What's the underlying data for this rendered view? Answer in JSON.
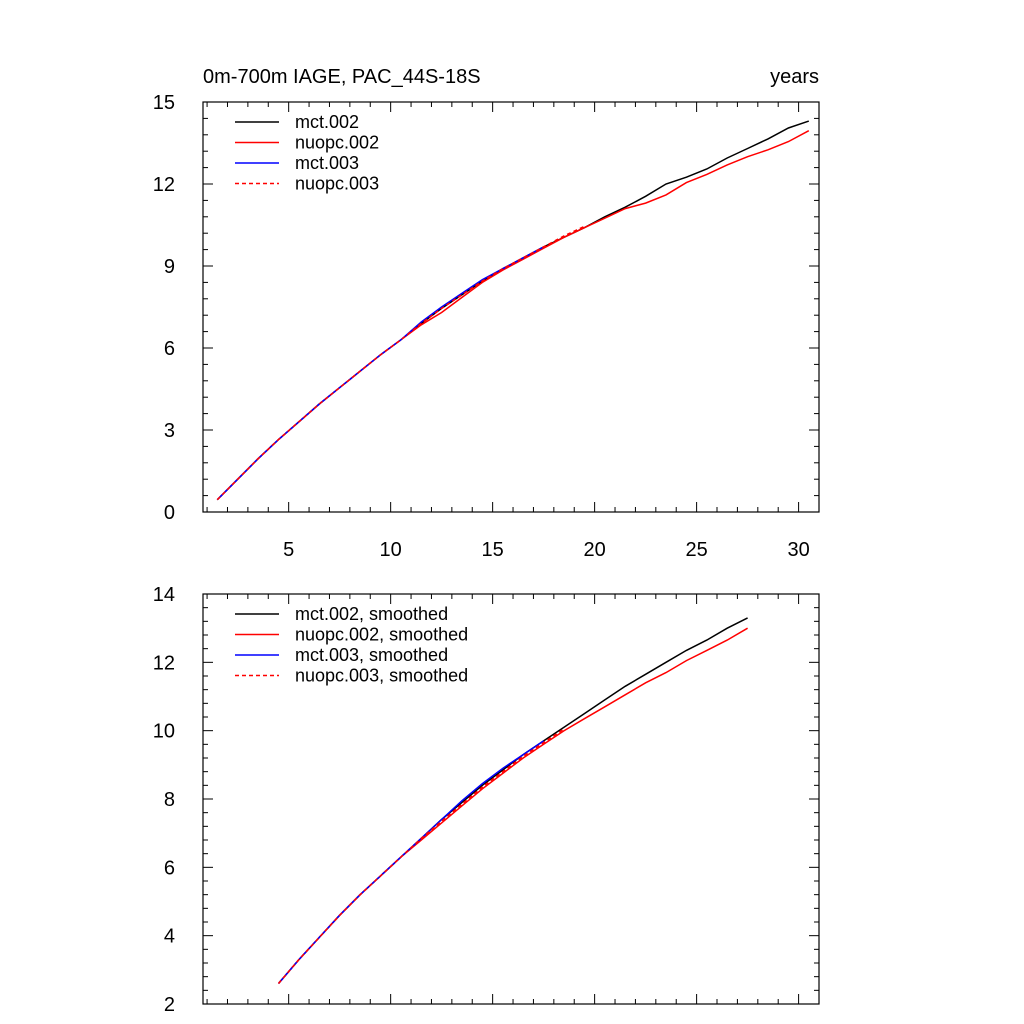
{
  "chart_data": [
    {
      "type": "line",
      "title": "0m-700m IAGE, PAC_44S-18S",
      "title_right": "years",
      "xlabel": "",
      "ylabel": "",
      "xlim": [
        0.8,
        31
      ],
      "ylim": [
        0,
        15
      ],
      "xticks": [
        5,
        10,
        15,
        20,
        25,
        30
      ],
      "yticks": [
        0,
        3,
        6,
        9,
        12,
        15
      ],
      "grid": false,
      "legend_position": "top-left",
      "series": [
        {
          "name": "mct.002",
          "color": "#000000",
          "dash": "solid",
          "x": [
            1.5,
            2.5,
            3.5,
            4.5,
            5.5,
            6.5,
            7.5,
            8.5,
            9.5,
            10.5,
            11.5,
            12.5,
            13.5,
            14.5,
            15.5,
            16.5,
            17.5,
            18.5,
            19.5,
            20.5,
            21.5,
            22.5,
            23.5,
            24.5,
            25.5,
            26.5,
            27.5,
            28.5,
            29.5,
            30.5
          ],
          "y": [
            0.45,
            1.2,
            1.95,
            2.65,
            3.3,
            3.95,
            4.55,
            5.15,
            5.75,
            6.3,
            6.9,
            7.45,
            7.95,
            8.45,
            8.9,
            9.3,
            9.7,
            10.05,
            10.4,
            10.8,
            11.15,
            11.55,
            12.0,
            12.25,
            12.55,
            12.95,
            13.3,
            13.65,
            14.05,
            14.3
          ]
        },
        {
          "name": "nuopc.002",
          "color": "#ff0000",
          "dash": "solid",
          "x": [
            1.5,
            2.5,
            3.5,
            4.5,
            5.5,
            6.5,
            7.5,
            8.5,
            9.5,
            10.5,
            11.5,
            12.5,
            13.5,
            14.5,
            15.5,
            16.5,
            17.5,
            18.5,
            19.5,
            20.5,
            21.5,
            22.5,
            23.5,
            24.5,
            25.5,
            26.5,
            27.5,
            28.5,
            29.5,
            30.5
          ],
          "y": [
            0.45,
            1.2,
            1.95,
            2.65,
            3.3,
            3.95,
            4.55,
            5.15,
            5.75,
            6.3,
            6.85,
            7.3,
            7.85,
            8.4,
            8.85,
            9.25,
            9.65,
            10.05,
            10.4,
            10.75,
            11.1,
            11.3,
            11.6,
            12.05,
            12.35,
            12.7,
            13.0,
            13.25,
            13.55,
            13.95
          ]
        },
        {
          "name": "mct.003",
          "color": "#0000ff",
          "dash": "solid",
          "x": [
            1.5,
            2.5,
            3.5,
            4.5,
            5.5,
            6.5,
            7.5,
            8.5,
            9.5,
            10.5,
            11.5,
            12.5,
            13.5,
            14.5,
            15.5,
            16.5,
            17.5
          ],
          "y": [
            0.45,
            1.2,
            1.95,
            2.65,
            3.3,
            3.95,
            4.55,
            5.15,
            5.75,
            6.3,
            6.95,
            7.5,
            8.0,
            8.5,
            8.9,
            9.3,
            9.7
          ]
        },
        {
          "name": "nuopc.003",
          "color": "#ff0000",
          "dash": "dashed",
          "x": [
            1.5,
            2.5,
            3.5,
            4.5,
            5.5,
            6.5,
            7.5,
            8.5,
            9.5,
            10.5,
            11.5,
            12.5,
            13.5,
            14.5,
            15.5,
            16.5,
            17.5,
            18.5,
            19.5
          ],
          "y": [
            0.45,
            1.2,
            1.95,
            2.65,
            3.3,
            3.95,
            4.55,
            5.15,
            5.75,
            6.3,
            6.9,
            7.45,
            7.95,
            8.45,
            8.9,
            9.3,
            9.7,
            10.1,
            10.45
          ]
        }
      ]
    },
    {
      "type": "line",
      "title": "",
      "xlabel": "",
      "ylabel": "",
      "xlim": [
        0.8,
        31
      ],
      "ylim": [
        2,
        14
      ],
      "xticks": [
        5,
        10,
        15,
        20,
        25,
        30
      ],
      "yticks": [
        2,
        4,
        6,
        8,
        10,
        12,
        14
      ],
      "grid": false,
      "legend_position": "top-left",
      "series": [
        {
          "name": "mct.002, smoothed",
          "color": "#000000",
          "dash": "solid",
          "x": [
            4.5,
            5.5,
            6.5,
            7.5,
            8.5,
            9.5,
            10.5,
            11.5,
            12.5,
            13.5,
            14.5,
            15.5,
            16.5,
            17.5,
            18.5,
            19.5,
            20.5,
            21.5,
            22.5,
            23.5,
            24.5,
            25.5,
            26.5,
            27.5
          ],
          "y": [
            2.6,
            3.3,
            3.95,
            4.6,
            5.2,
            5.75,
            6.3,
            6.85,
            7.4,
            7.9,
            8.4,
            8.85,
            9.3,
            9.7,
            10.1,
            10.5,
            10.9,
            11.3,
            11.65,
            12.0,
            12.35,
            12.65,
            13.0,
            13.3
          ]
        },
        {
          "name": "nuopc.002, smoothed",
          "color": "#ff0000",
          "dash": "solid",
          "x": [
            4.5,
            5.5,
            6.5,
            7.5,
            8.5,
            9.5,
            10.5,
            11.5,
            12.5,
            13.5,
            14.5,
            15.5,
            16.5,
            17.5,
            18.5,
            19.5,
            20.5,
            21.5,
            22.5,
            23.5,
            24.5,
            25.5,
            26.5,
            27.5
          ],
          "y": [
            2.6,
            3.3,
            3.95,
            4.6,
            5.2,
            5.75,
            6.3,
            6.8,
            7.3,
            7.8,
            8.3,
            8.75,
            9.2,
            9.6,
            10.0,
            10.35,
            10.7,
            11.05,
            11.4,
            11.7,
            12.05,
            12.35,
            12.65,
            13.0
          ]
        },
        {
          "name": "mct.003, smoothed",
          "color": "#0000ff",
          "dash": "solid",
          "x": [
            4.5,
            5.5,
            6.5,
            7.5,
            8.5,
            9.5,
            10.5,
            11.5,
            12.5,
            13.5,
            14.5,
            15.5,
            16.5,
            17.5
          ],
          "y": [
            2.6,
            3.3,
            3.95,
            4.6,
            5.2,
            5.75,
            6.3,
            6.85,
            7.4,
            7.95,
            8.45,
            8.9,
            9.3,
            9.7
          ]
        },
        {
          "name": "nuopc.003, smoothed",
          "color": "#ff0000",
          "dash": "dashed",
          "x": [
            4.5,
            5.5,
            6.5,
            7.5,
            8.5,
            9.5,
            10.5,
            11.5,
            12.5,
            13.5,
            14.5,
            15.5,
            16.5,
            17.5,
            18.5
          ],
          "y": [
            2.6,
            3.3,
            3.95,
            4.6,
            5.2,
            5.75,
            6.3,
            6.85,
            7.35,
            7.85,
            8.35,
            8.8,
            9.25,
            9.65,
            10.05
          ]
        }
      ]
    }
  ]
}
